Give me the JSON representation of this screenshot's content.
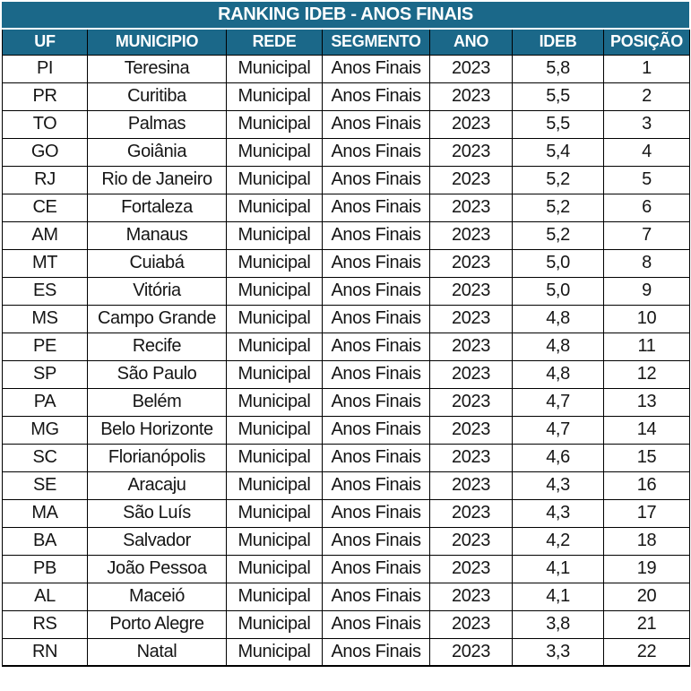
{
  "chart_data": {
    "type": "table",
    "title": "RANKING IDEB - ANOS FINAIS",
    "columns": [
      "UF",
      "MUNICIPIO",
      "REDE",
      "SEGMENTO",
      "ANO",
      "IDEB",
      "POSIÇÃO"
    ],
    "rows": [
      [
        "PI",
        "Teresina",
        "Municipal",
        "Anos Finais",
        "2023",
        "5,8",
        "1"
      ],
      [
        "PR",
        "Curitiba",
        "Municipal",
        "Anos Finais",
        "2023",
        "5,5",
        "2"
      ],
      [
        "TO",
        "Palmas",
        "Municipal",
        "Anos Finais",
        "2023",
        "5,5",
        "3"
      ],
      [
        "GO",
        "Goiânia",
        "Municipal",
        "Anos Finais",
        "2023",
        "5,4",
        "4"
      ],
      [
        "RJ",
        "Rio de Janeiro",
        "Municipal",
        "Anos Finais",
        "2023",
        "5,2",
        "5"
      ],
      [
        "CE",
        "Fortaleza",
        "Municipal",
        "Anos Finais",
        "2023",
        "5,2",
        "6"
      ],
      [
        "AM",
        "Manaus",
        "Municipal",
        "Anos Finais",
        "2023",
        "5,2",
        "7"
      ],
      [
        "MT",
        "Cuiabá",
        "Municipal",
        "Anos Finais",
        "2023",
        "5,0",
        "8"
      ],
      [
        "ES",
        "Vitória",
        "Municipal",
        "Anos Finais",
        "2023",
        "5,0",
        "9"
      ],
      [
        "MS",
        "Campo Grande",
        "Municipal",
        "Anos Finais",
        "2023",
        "4,8",
        "10"
      ],
      [
        "PE",
        "Recife",
        "Municipal",
        "Anos Finais",
        "2023",
        "4,8",
        "11"
      ],
      [
        "SP",
        "São Paulo",
        "Municipal",
        "Anos Finais",
        "2023",
        "4,8",
        "12"
      ],
      [
        "PA",
        "Belém",
        "Municipal",
        "Anos Finais",
        "2023",
        "4,7",
        "13"
      ],
      [
        "MG",
        "Belo Horizonte",
        "Municipal",
        "Anos Finais",
        "2023",
        "4,7",
        "14"
      ],
      [
        "SC",
        "Florianópolis",
        "Municipal",
        "Anos Finais",
        "2023",
        "4,6",
        "15"
      ],
      [
        "SE",
        "Aracaju",
        "Municipal",
        "Anos Finais",
        "2023",
        "4,3",
        "16"
      ],
      [
        "MA",
        "São Luís",
        "Municipal",
        "Anos Finais",
        "2023",
        "4,3",
        "17"
      ],
      [
        "BA",
        "Salvador",
        "Municipal",
        "Anos Finais",
        "2023",
        "4,2",
        "18"
      ],
      [
        "PB",
        "João Pessoa",
        "Municipal",
        "Anos Finais",
        "2023",
        "4,1",
        "19"
      ],
      [
        "AL",
        "Maceió",
        "Municipal",
        "Anos Finais",
        "2023",
        "4,1",
        "20"
      ],
      [
        "RS",
        "Porto Alegre",
        "Municipal",
        "Anos Finais",
        "2023",
        "3,8",
        "21"
      ],
      [
        "RN",
        "Natal",
        "Municipal",
        "Anos Finais",
        "2023",
        "3,3",
        "22"
      ]
    ]
  },
  "colors": {
    "header_bg": "#1b6889",
    "header_text": "#ffffff",
    "border": "#000000",
    "cell_text": "#151515",
    "row_bg": "#ffffff"
  }
}
